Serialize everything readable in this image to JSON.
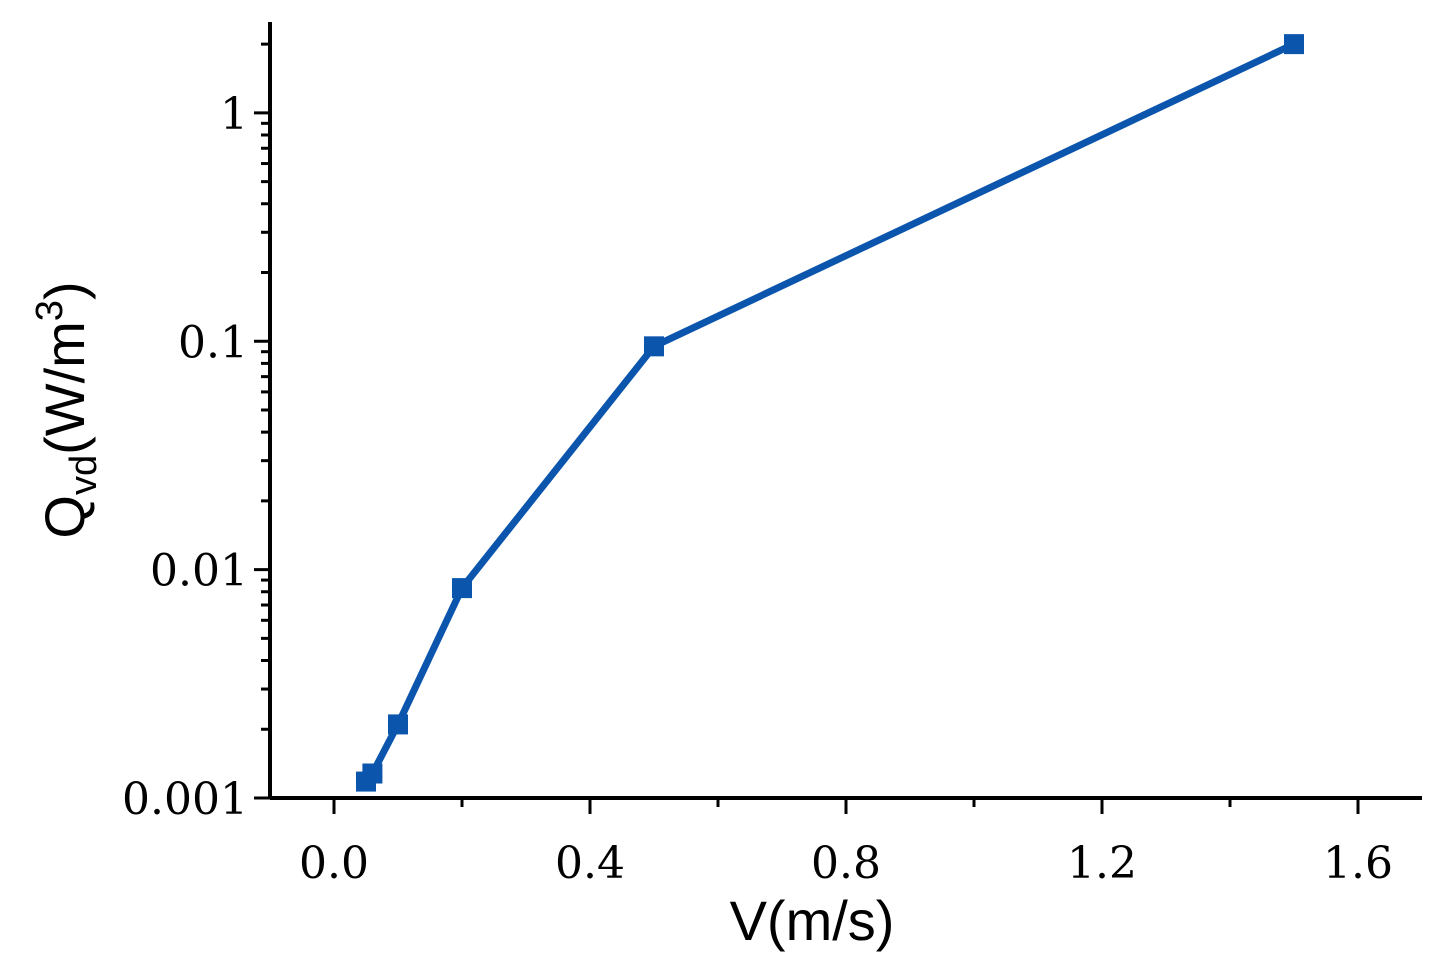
{
  "chart_data": {
    "type": "line",
    "xlabel": "V(m/s)",
    "ylabel": {
      "base": "Q",
      "sub": "vd",
      "unit_open": "(W/m",
      "sup": "3",
      "unit_close": ")"
    },
    "xscale": "linear",
    "yscale": "log",
    "xlim": [
      -0.1,
      1.7
    ],
    "ylim": [
      0.001,
      2.5
    ],
    "xticks": [
      {
        "value": 0.0,
        "label": "0.0"
      },
      {
        "value": 0.4,
        "label": "0.4"
      },
      {
        "value": 0.8,
        "label": "0.8"
      },
      {
        "value": 1.2,
        "label": "1.2"
      },
      {
        "value": 1.6,
        "label": "1.6"
      }
    ],
    "xminor": [
      0.2,
      0.6,
      1.0,
      1.4
    ],
    "yticks": [
      {
        "value": 0.001,
        "label": "0.001"
      },
      {
        "value": 0.01,
        "label": "0.01"
      },
      {
        "value": 0.1,
        "label": "0.1"
      },
      {
        "value": 1,
        "label": "1"
      }
    ],
    "grid": false,
    "series": [
      {
        "color": "#0b55ad",
        "marker": "square",
        "x": [
          0.05,
          0.06,
          0.1,
          0.2,
          0.5,
          1.5
        ],
        "y": [
          0.00118,
          0.00128,
          0.0021,
          0.0083,
          0.095,
          2.0
        ]
      }
    ]
  }
}
